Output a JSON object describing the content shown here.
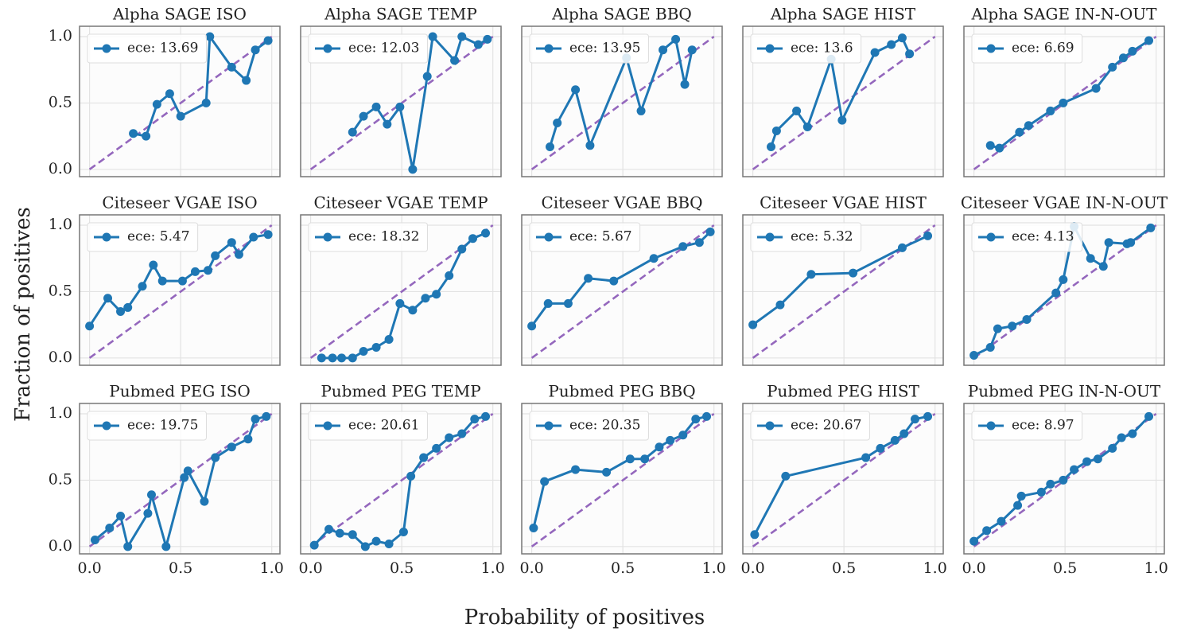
{
  "ylabel": "Fraction of positives",
  "xlabel": "Probability of positives",
  "chart_data": [
    {
      "type": "line",
      "title": "Alpha SAGE ISO",
      "xlim": [
        -0.055,
        1.045
      ],
      "ylim": [
        -0.055,
        1.078
      ],
      "xticks": [
        0,
        0.5,
        1
      ],
      "yticks": [
        {
          "value": 0,
          "label": "0.0"
        },
        {
          "value": 0.5,
          "label": "0.5"
        },
        {
          "value": 1,
          "label": "1.0"
        }
      ],
      "grid": true,
      "legend": "upper left",
      "diagonal": true,
      "diagonal_color": "#9467bd",
      "series": [
        {
          "name": "ece: 13.69",
          "color": "#1f77b4",
          "x": [
            0.24,
            0.31,
            0.37,
            0.44,
            0.5,
            0.64,
            0.66,
            0.78,
            0.86,
            0.91,
            0.98
          ],
          "values": [
            0.27,
            0.25,
            0.49,
            0.57,
            0.4,
            0.5,
            1.0,
            0.77,
            0.67,
            0.9,
            0.97
          ]
        }
      ]
    },
    {
      "type": "line",
      "title": "Alpha SAGE TEMP",
      "xlim": [
        -0.055,
        1.045
      ],
      "ylim": [
        -0.055,
        1.078
      ],
      "xticks": [
        0,
        0.5,
        1
      ],
      "yticks": [
        0,
        0.5,
        1
      ],
      "grid": true,
      "legend": "upper left",
      "diagonal": true,
      "diagonal_color": "#9467bd",
      "series": [
        {
          "name": "ece: 12.03",
          "color": "#1f77b4",
          "x": [
            0.23,
            0.29,
            0.36,
            0.42,
            0.49,
            0.56,
            0.64,
            0.67,
            0.79,
            0.83,
            0.92,
            0.97
          ],
          "values": [
            0.28,
            0.4,
            0.47,
            0.34,
            0.47,
            0.0,
            0.7,
            1.0,
            0.82,
            1.0,
            0.94,
            0.98
          ]
        }
      ]
    },
    {
      "type": "line",
      "title": "Alpha SAGE BBQ",
      "xlim": [
        -0.055,
        1.045
      ],
      "ylim": [
        -0.055,
        1.078
      ],
      "xticks": [
        0,
        0.5,
        1
      ],
      "yticks": [
        0,
        0.5,
        1
      ],
      "grid": true,
      "legend": "upper left",
      "diagonal": true,
      "diagonal_color": "#9467bd",
      "series": [
        {
          "name": "ece: 13.95",
          "color": "#1f77b4",
          "x": [
            0.1,
            0.14,
            0.24,
            0.32,
            0.52,
            0.6,
            0.72,
            0.79,
            0.84,
            0.88
          ],
          "values": [
            0.17,
            0.35,
            0.6,
            0.18,
            0.84,
            0.44,
            0.9,
            0.98,
            0.64,
            0.9
          ]
        }
      ]
    },
    {
      "type": "line",
      "title": "Alpha SAGE HIST",
      "xlim": [
        -0.055,
        1.045
      ],
      "ylim": [
        -0.055,
        1.078
      ],
      "xticks": [
        0,
        0.5,
        1
      ],
      "yticks": [
        0,
        0.5,
        1
      ],
      "grid": true,
      "legend": "upper left",
      "diagonal": true,
      "diagonal_color": "#9467bd",
      "series": [
        {
          "name": "ece: 13.6",
          "color": "#1f77b4",
          "x": [
            0.1,
            0.13,
            0.24,
            0.3,
            0.43,
            0.49,
            0.67,
            0.76,
            0.82,
            0.86
          ],
          "values": [
            0.17,
            0.29,
            0.44,
            0.32,
            0.83,
            0.37,
            0.88,
            0.94,
            0.99,
            0.87
          ]
        }
      ]
    },
    {
      "type": "line",
      "title": "Alpha SAGE IN-N-OUT",
      "xlim": [
        -0.055,
        1.045
      ],
      "ylim": [
        -0.055,
        1.078
      ],
      "xticks": [
        0,
        0.5,
        1
      ],
      "yticks": [
        0,
        0.5,
        1
      ],
      "grid": true,
      "legend": "upper left",
      "diagonal": true,
      "diagonal_color": "#9467bd",
      "series": [
        {
          "name": "ece: 6.69",
          "color": "#1f77b4",
          "x": [
            0.09,
            0.14,
            0.25,
            0.3,
            0.42,
            0.49,
            0.67,
            0.76,
            0.82,
            0.87,
            0.96
          ],
          "values": [
            0.18,
            0.16,
            0.28,
            0.33,
            0.44,
            0.5,
            0.61,
            0.77,
            0.84,
            0.89,
            0.97
          ]
        }
      ]
    },
    {
      "type": "line",
      "title": "Citeseer VGAE ISO",
      "xlim": [
        -0.055,
        1.045
      ],
      "ylim": [
        -0.055,
        1.078
      ],
      "xticks": [
        0,
        0.5,
        1
      ],
      "yticks": [
        {
          "value": 0,
          "label": "0.0"
        },
        {
          "value": 0.5,
          "label": "0.5"
        },
        {
          "value": 1,
          "label": "1.0"
        }
      ],
      "grid": true,
      "legend": "upper left",
      "diagonal": true,
      "diagonal_color": "#9467bd",
      "series": [
        {
          "name": "ece: 5.47",
          "color": "#1f77b4",
          "x": [
            0.0,
            0.1,
            0.17,
            0.21,
            0.29,
            0.35,
            0.4,
            0.51,
            0.58,
            0.65,
            0.69,
            0.78,
            0.82,
            0.9,
            0.98
          ],
          "values": [
            0.24,
            0.45,
            0.35,
            0.38,
            0.54,
            0.7,
            0.58,
            0.58,
            0.65,
            0.66,
            0.77,
            0.87,
            0.78,
            0.91,
            0.93
          ]
        }
      ]
    },
    {
      "type": "line",
      "title": "Citeseer VGAE TEMP",
      "xlim": [
        -0.055,
        1.045
      ],
      "ylim": [
        -0.055,
        1.078
      ],
      "xticks": [
        0,
        0.5,
        1
      ],
      "yticks": [
        0,
        0.5,
        1
      ],
      "grid": true,
      "legend": "upper left",
      "diagonal": true,
      "diagonal_color": "#9467bd",
      "series": [
        {
          "name": "ece: 18.32",
          "color": "#1f77b4",
          "x": [
            0.06,
            0.12,
            0.17,
            0.23,
            0.29,
            0.36,
            0.43,
            0.49,
            0.56,
            0.63,
            0.69,
            0.76,
            0.83,
            0.89,
            0.96
          ],
          "values": [
            0.0,
            0.0,
            0.0,
            0.0,
            0.05,
            0.08,
            0.14,
            0.41,
            0.36,
            0.45,
            0.48,
            0.62,
            0.82,
            0.9,
            0.94
          ]
        }
      ]
    },
    {
      "type": "line",
      "title": "Citeseer VGAE BBQ",
      "xlim": [
        -0.055,
        1.045
      ],
      "ylim": [
        -0.055,
        1.078
      ],
      "xticks": [
        0,
        0.5,
        1
      ],
      "yticks": [
        0,
        0.5,
        1
      ],
      "grid": true,
      "legend": "upper left",
      "diagonal": true,
      "diagonal_color": "#9467bd",
      "series": [
        {
          "name": "ece: 5.67",
          "color": "#1f77b4",
          "x": [
            0.0,
            0.09,
            0.2,
            0.31,
            0.45,
            0.67,
            0.83,
            0.92,
            0.98
          ],
          "values": [
            0.24,
            0.41,
            0.41,
            0.6,
            0.58,
            0.75,
            0.84,
            0.87,
            0.95
          ]
        }
      ]
    },
    {
      "type": "line",
      "title": "Citeseer VGAE HIST",
      "xlim": [
        -0.055,
        1.045
      ],
      "ylim": [
        -0.055,
        1.078
      ],
      "xticks": [
        0,
        0.5,
        1
      ],
      "yticks": [
        0,
        0.5,
        1
      ],
      "grid": true,
      "legend": "upper left",
      "diagonal": true,
      "diagonal_color": "#9467bd",
      "series": [
        {
          "name": "ece: 5.32",
          "color": "#1f77b4",
          "x": [
            0.0,
            0.15,
            0.32,
            0.55,
            0.82,
            0.96
          ],
          "values": [
            0.25,
            0.4,
            0.63,
            0.64,
            0.83,
            0.92
          ]
        }
      ]
    },
    {
      "type": "line",
      "title": "Citeseer VGAE IN-N-OUT",
      "xlim": [
        -0.055,
        1.045
      ],
      "ylim": [
        -0.055,
        1.078
      ],
      "xticks": [
        0,
        0.5,
        1
      ],
      "yticks": [
        0,
        0.5,
        1
      ],
      "grid": true,
      "legend": "upper left",
      "diagonal": true,
      "diagonal_color": "#9467bd",
      "series": [
        {
          "name": "ece: 4.13",
          "color": "#1f77b4",
          "x": [
            0.0,
            0.09,
            0.13,
            0.21,
            0.29,
            0.45,
            0.49,
            0.55,
            0.64,
            0.71,
            0.74,
            0.84,
            0.86,
            0.97
          ],
          "values": [
            0.02,
            0.08,
            0.22,
            0.24,
            0.29,
            0.49,
            0.59,
            0.99,
            0.75,
            0.69,
            0.87,
            0.86,
            0.87,
            0.98
          ]
        }
      ]
    },
    {
      "type": "line",
      "title": "Pubmed PEG ISO",
      "xlim": [
        -0.055,
        1.045
      ],
      "ylim": [
        -0.055,
        1.078
      ],
      "xticks": [
        {
          "value": 0,
          "label": "0.0"
        },
        {
          "value": 0.5,
          "label": "0.5"
        },
        {
          "value": 1,
          "label": "1.0"
        }
      ],
      "yticks": [
        {
          "value": 0,
          "label": "0.0"
        },
        {
          "value": 0.5,
          "label": "0.5"
        },
        {
          "value": 1,
          "label": "1.0"
        }
      ],
      "grid": true,
      "legend": "upper left",
      "diagonal": true,
      "diagonal_color": "#9467bd",
      "series": [
        {
          "name": "ece: 19.75",
          "color": "#1f77b4",
          "x": [
            0.03,
            0.11,
            0.17,
            0.21,
            0.32,
            0.34,
            0.42,
            0.52,
            0.54,
            0.63,
            0.69,
            0.78,
            0.87,
            0.91,
            0.97
          ],
          "values": [
            0.05,
            0.14,
            0.23,
            0.0,
            0.25,
            0.39,
            0.0,
            0.52,
            0.57,
            0.34,
            0.67,
            0.75,
            0.81,
            0.96,
            0.98
          ]
        }
      ]
    },
    {
      "type": "line",
      "title": "Pubmed PEG TEMP",
      "xlim": [
        -0.055,
        1.045
      ],
      "ylim": [
        -0.055,
        1.078
      ],
      "xticks": [
        {
          "value": 0,
          "label": "0.0"
        },
        {
          "value": 0.5,
          "label": "0.5"
        },
        {
          "value": 1,
          "label": "1.0"
        }
      ],
      "yticks": [
        0,
        0.5,
        1
      ],
      "grid": true,
      "legend": "upper left",
      "diagonal": true,
      "diagonal_color": "#9467bd",
      "series": [
        {
          "name": "ece: 20.61",
          "color": "#1f77b4",
          "x": [
            0.02,
            0.1,
            0.16,
            0.23,
            0.3,
            0.36,
            0.43,
            0.51,
            0.55,
            0.62,
            0.69,
            0.76,
            0.83,
            0.9,
            0.96
          ],
          "values": [
            0.01,
            0.13,
            0.1,
            0.09,
            0.0,
            0.04,
            0.02,
            0.11,
            0.53,
            0.67,
            0.74,
            0.82,
            0.85,
            0.96,
            0.98
          ]
        }
      ]
    },
    {
      "type": "line",
      "title": "Pubmed PEG BBQ",
      "xlim": [
        -0.055,
        1.045
      ],
      "ylim": [
        -0.055,
        1.078
      ],
      "xticks": [
        {
          "value": 0,
          "label": "0.0"
        },
        {
          "value": 0.5,
          "label": "0.5"
        },
        {
          "value": 1,
          "label": "1.0"
        }
      ],
      "yticks": [
        0,
        0.5,
        1
      ],
      "grid": true,
      "legend": "upper left",
      "diagonal": true,
      "diagonal_color": "#9467bd",
      "series": [
        {
          "name": "ece: 20.35",
          "color": "#1f77b4",
          "x": [
            0.01,
            0.07,
            0.24,
            0.41,
            0.54,
            0.62,
            0.7,
            0.76,
            0.83,
            0.9,
            0.96
          ],
          "values": [
            0.14,
            0.49,
            0.58,
            0.56,
            0.66,
            0.66,
            0.75,
            0.8,
            0.84,
            0.96,
            0.98
          ]
        }
      ]
    },
    {
      "type": "line",
      "title": "Pubmed PEG HIST",
      "xlim": [
        -0.055,
        1.045
      ],
      "ylim": [
        -0.055,
        1.078
      ],
      "xticks": [
        {
          "value": 0,
          "label": "0.0"
        },
        {
          "value": 0.5,
          "label": "0.5"
        },
        {
          "value": 1,
          "label": "1.0"
        }
      ],
      "yticks": [
        0,
        0.5,
        1
      ],
      "grid": true,
      "legend": "upper left",
      "diagonal": true,
      "diagonal_color": "#9467bd",
      "series": [
        {
          "name": "ece: 20.67",
          "color": "#1f77b4",
          "x": [
            0.01,
            0.18,
            0.62,
            0.7,
            0.78,
            0.83,
            0.89,
            0.96
          ],
          "values": [
            0.09,
            0.53,
            0.67,
            0.74,
            0.8,
            0.85,
            0.96,
            0.98
          ]
        }
      ]
    },
    {
      "type": "line",
      "title": "Pubmed PEG IN-N-OUT",
      "xlim": [
        -0.055,
        1.045
      ],
      "ylim": [
        -0.055,
        1.078
      ],
      "xticks": [
        {
          "value": 0,
          "label": "0.0"
        },
        {
          "value": 0.5,
          "label": "0.5"
        },
        {
          "value": 1,
          "label": "1.0"
        }
      ],
      "yticks": [
        0,
        0.5,
        1
      ],
      "grid": true,
      "legend": "upper left",
      "diagonal": true,
      "diagonal_color": "#9467bd",
      "series": [
        {
          "name": "ece: 8.97",
          "color": "#1f77b4",
          "x": [
            0.0,
            0.07,
            0.15,
            0.24,
            0.26,
            0.37,
            0.42,
            0.49,
            0.55,
            0.62,
            0.68,
            0.76,
            0.81,
            0.87,
            0.96
          ],
          "values": [
            0.04,
            0.12,
            0.19,
            0.31,
            0.38,
            0.41,
            0.47,
            0.5,
            0.58,
            0.64,
            0.66,
            0.74,
            0.82,
            0.85,
            0.98
          ]
        }
      ]
    }
  ]
}
